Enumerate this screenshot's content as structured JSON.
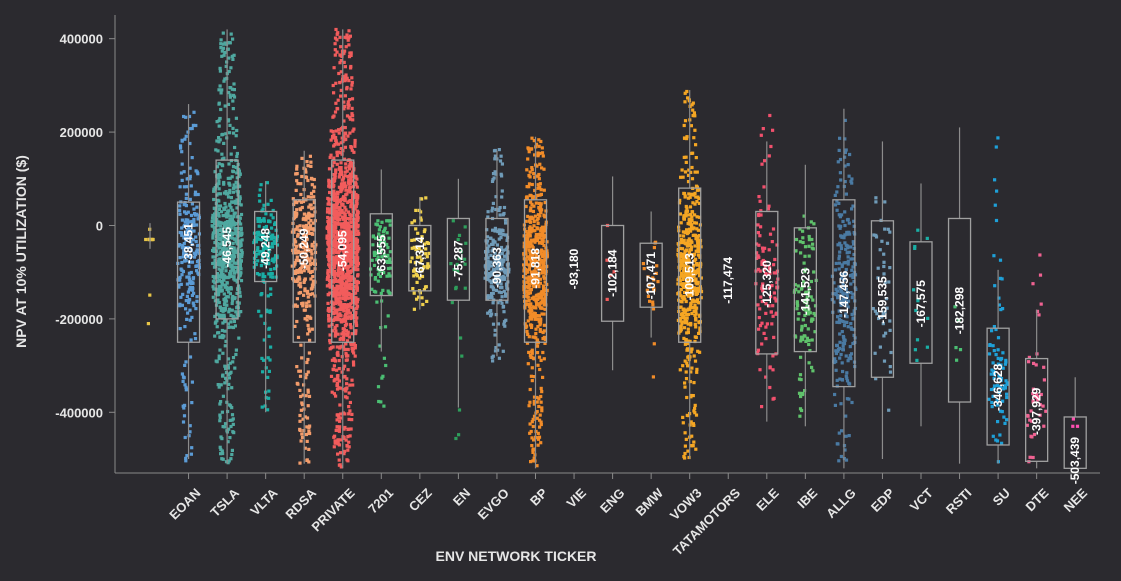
{
  "chart_data": {
    "type": "strip",
    "xlabel": "ENV NETWORK TICKER",
    "ylabel": "NPV AT 10% UTILIZATION ($)",
    "ylim": [
      -530000,
      440000
    ],
    "yticks": [
      400000,
      200000,
      0,
      -200000,
      -400000
    ],
    "ytick_labels": [
      "400000",
      "200000",
      "0",
      "-200000",
      "-400000"
    ],
    "categories": [
      {
        "name": "",
        "color": "#e8c547",
        "median": -30000,
        "median_label": "",
        "q1": -30000,
        "q3": -30000,
        "wlo": -50000,
        "whi": 5000,
        "pmin": -240000,
        "pmax": 5000,
        "dense": 0.02,
        "width": 0.3,
        "points": 12
      },
      {
        "name": "EOAN",
        "color": "#5b9bd5",
        "median": -38451,
        "median_label": "-38,451",
        "q1": -250000,
        "q3": 50000,
        "wlo": -500000,
        "whi": 260000,
        "pmin": -505000,
        "pmax": 260000,
        "dense": 0.08,
        "width": 0.7,
        "points": 230
      },
      {
        "name": "TSLA",
        "color": "#4fa8a0",
        "median": -46545,
        "median_label": "-46,545",
        "q1": -200000,
        "q3": 140000,
        "wlo": -510000,
        "whi": 420000,
        "pmin": -510000,
        "pmax": 420000,
        "dense": 0.1,
        "width": 0.95,
        "points": 750
      },
      {
        "name": "VLTA",
        "color": "#1aaea5",
        "median": -49248,
        "median_label": "-49,248",
        "q1": -120000,
        "q3": 30000,
        "wlo": -400000,
        "whi": 95000,
        "pmin": -400000,
        "pmax": 95000,
        "dense": 0.08,
        "width": 0.75,
        "points": 160
      },
      {
        "name": "RDSA",
        "color": "#f39c6b",
        "median": -50249,
        "median_label": "-50,249",
        "q1": -250000,
        "q3": 55000,
        "wlo": -510000,
        "whi": 160000,
        "pmin": -510000,
        "pmax": 160000,
        "dense": 0.08,
        "width": 0.75,
        "points": 320
      },
      {
        "name": "PRIVATE",
        "color": "#f25c5c",
        "median": -54095,
        "median_label": "-54,095",
        "q1": -250000,
        "q3": 140000,
        "wlo": -520000,
        "whi": 420000,
        "pmin": -520000,
        "pmax": 420000,
        "dense": 0.1,
        "width": 1.0,
        "points": 1300
      },
      {
        "name": "7201",
        "color": "#4bbf73",
        "median": -63555,
        "median_label": "-63,555",
        "q1": -150000,
        "q3": 25000,
        "wlo": -270000,
        "whi": 120000,
        "pmin": -390000,
        "pmax": 10000,
        "dense": 0.08,
        "width": 0.7,
        "points": 90
      },
      {
        "name": "CEZ",
        "color": "#f0d04c",
        "median": -67314,
        "median_label": "-67,314",
        "q1": -140000,
        "q3": 0,
        "wlo": -180000,
        "whi": 60000,
        "pmin": -180000,
        "pmax": 60000,
        "dense": 0.08,
        "width": 0.6,
        "points": 70
      },
      {
        "name": "EN",
        "color": "#2e9e5b",
        "median": -75287,
        "median_label": "-75,287",
        "q1": -160000,
        "q3": 15000,
        "wlo": -390000,
        "whi": 100000,
        "pmin": -510000,
        "pmax": 10000,
        "dense": 0.02,
        "width": 0.5,
        "points": 22
      },
      {
        "name": "EVGO",
        "color": "#6f9bb8",
        "median": -90363,
        "median_label": "-90,363",
        "q1": -160000,
        "q3": 15000,
        "wlo": -280000,
        "whi": 160000,
        "pmin": -290000,
        "pmax": 165000,
        "dense": 0.08,
        "width": 0.75,
        "points": 260
      },
      {
        "name": "BP",
        "color": "#f28c28",
        "median": -91818,
        "median_label": "-91,818",
        "q1": -250000,
        "q3": 55000,
        "wlo": -520000,
        "whi": 190000,
        "pmin": -515000,
        "pmax": 190000,
        "dense": 0.08,
        "width": 0.75,
        "points": 560
      },
      {
        "name": "VIE",
        "color": "#e6e6e6",
        "median": -93180,
        "median_label": "-93,180",
        "q1": -93180,
        "q3": -93180,
        "wlo": -93180,
        "whi": -93180,
        "pmin": -93180,
        "pmax": -93180,
        "dense": 0,
        "width": 0,
        "points": 0
      },
      {
        "name": "ENG",
        "color": "#f25c5c",
        "median": -102184,
        "median_label": "-102,184",
        "q1": -205000,
        "q3": 0,
        "wlo": -310000,
        "whi": 105000,
        "pmin": -310000,
        "pmax": 0,
        "dense": 0.02,
        "width": 0.4,
        "points": 5
      },
      {
        "name": "BMW",
        "color": "#f28c28",
        "median": -107471,
        "median_label": "-107,471",
        "q1": -175000,
        "q3": -38000,
        "wlo": -240000,
        "whi": 30000,
        "pmin": -325000,
        "pmax": -10000,
        "dense": 0.05,
        "width": 0.5,
        "points": 22
      },
      {
        "name": "VOW3",
        "color": "#f5a623",
        "median": -109513,
        "median_label": "-109,513",
        "q1": -250000,
        "q3": 80000,
        "wlo": -500000,
        "whi": 290000,
        "pmin": -500000,
        "pmax": 290000,
        "dense": 0.08,
        "width": 0.75,
        "points": 520
      },
      {
        "name": "TATAMOTORS",
        "color": "#e6e6e6",
        "median": -117474,
        "median_label": "-117,474",
        "q1": -117474,
        "q3": -117474,
        "wlo": -117474,
        "whi": -117474,
        "pmin": -117474,
        "pmax": -117474,
        "dense": 0,
        "width": 0,
        "points": 0
      },
      {
        "name": "ELE",
        "color": "#f2506d",
        "median": -125320,
        "median_label": "-125,320",
        "q1": -275000,
        "q3": 30000,
        "wlo": -420000,
        "whi": 180000,
        "pmin": -390000,
        "pmax": 240000,
        "dense": 0.05,
        "width": 0.7,
        "points": 110
      },
      {
        "name": "IBE",
        "color": "#5fc26b",
        "median": -141523,
        "median_label": "-141,523",
        "q1": -270000,
        "q3": -5000,
        "wlo": -430000,
        "whi": 130000,
        "pmin": -430000,
        "pmax": 20000,
        "dense": 0.05,
        "width": 0.7,
        "points": 110
      },
      {
        "name": "ALLG",
        "color": "#4a7aa3",
        "median": -147456,
        "median_label": "-147,456",
        "q1": -345000,
        "q3": 55000,
        "wlo": -520000,
        "whi": 250000,
        "pmin": -510000,
        "pmax": 230000,
        "dense": 0.05,
        "width": 0.75,
        "points": 250
      },
      {
        "name": "EDP",
        "color": "#6f9bb8",
        "median": -159535,
        "median_label": "-159,535",
        "q1": -325000,
        "q3": 10000,
        "wlo": -500000,
        "whi": 180000,
        "pmin": -440000,
        "pmax": 70000,
        "dense": 0.05,
        "width": 0.6,
        "points": 45
      },
      {
        "name": "VCT",
        "color": "#1aaea5",
        "median": -167575,
        "median_label": "-167,575",
        "q1": -295000,
        "q3": -35000,
        "wlo": -430000,
        "whi": 90000,
        "pmin": -295000,
        "pmax": -10000,
        "dense": 0.03,
        "width": 0.5,
        "points": 12
      },
      {
        "name": "RSTI",
        "color": "#4bbf73",
        "median": -182298,
        "median_label": "-182,298",
        "q1": -378000,
        "q3": 15000,
        "wlo": -510000,
        "whi": 210000,
        "pmin": -430000,
        "pmax": -10000,
        "dense": 0.01,
        "width": 0.35,
        "points": 5
      },
      {
        "name": "SU",
        "color": "#1ea0d8",
        "median": -346628,
        "median_label": "-346,628",
        "q1": -470000,
        "q3": -220000,
        "wlo": -510000,
        "whi": -95000,
        "pmin": -510000,
        "pmax": 215000,
        "dense": 0.05,
        "width": 0.6,
        "points": 80
      },
      {
        "name": "DTE",
        "color": "#f06292",
        "median": -397929,
        "median_label": "-397,929",
        "q1": -505000,
        "q3": -285000,
        "wlo": -520000,
        "whi": -180000,
        "pmin": -515000,
        "pmax": 10000,
        "dense": 0.05,
        "width": 0.6,
        "points": 40
      },
      {
        "name": "NEE",
        "color": "#ff4fb1",
        "median": -503439,
        "median_label": "-503,439",
        "q1": -520000,
        "q3": -410000,
        "wlo": -520000,
        "whi": -325000,
        "pmin": -430000,
        "pmax": -405000,
        "dense": 0,
        "width": 0.3,
        "points": 3
      }
    ]
  }
}
